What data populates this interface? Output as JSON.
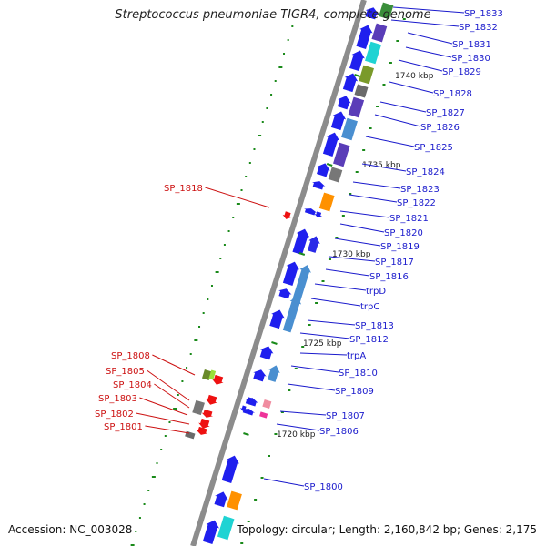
{
  "title": "Streptococcus pneumoniae TIGR4, complete genome",
  "footer": {
    "accession": "Accession: NC_003028",
    "topology": "Topology: circular; Length: 2,160,842 bp; Genes: 2,175"
  },
  "colors": {
    "backbone": "#8c8c8c",
    "forward_gene": "#1f1fee",
    "reverse_gene": "#ee1111",
    "gene_label_forward": "#1a1acc",
    "gene_label_reverse": "#cc1111",
    "gc_skew_dots": "#1a8a1a"
  },
  "scale_ticks": [
    {
      "label": "1740 kbp"
    },
    {
      "label": "1735 kbp"
    },
    {
      "label": "1730 kbp"
    },
    {
      "label": "1725 kbp"
    },
    {
      "label": "1720 kbp"
    }
  ],
  "forward_genes": [
    {
      "label": "SP_1833"
    },
    {
      "label": "SP_1832"
    },
    {
      "label": "SP_1831"
    },
    {
      "label": "SP_1830"
    },
    {
      "label": "SP_1829"
    },
    {
      "label": "SP_1828"
    },
    {
      "label": "SP_1827"
    },
    {
      "label": "SP_1826"
    },
    {
      "label": "SP_1825"
    },
    {
      "label": "SP_1824"
    },
    {
      "label": "SP_1823"
    },
    {
      "label": "SP_1822"
    },
    {
      "label": "SP_1821"
    },
    {
      "label": "SP_1820"
    },
    {
      "label": "SP_1819"
    },
    {
      "label": "SP_1817"
    },
    {
      "label": "SP_1816"
    },
    {
      "label": "trpD"
    },
    {
      "label": "trpC"
    },
    {
      "label": "SP_1813"
    },
    {
      "label": "SP_1812"
    },
    {
      "label": "trpA"
    },
    {
      "label": "SP_1810"
    },
    {
      "label": "SP_1809"
    },
    {
      "label": "SP_1807"
    },
    {
      "label": "SP_1806"
    },
    {
      "label": "SP_1800"
    }
  ],
  "reverse_genes": [
    {
      "label": "SP_1818"
    },
    {
      "label": "SP_1808"
    },
    {
      "label": "SP_1805"
    },
    {
      "label": "SP_1804"
    },
    {
      "label": "SP_1803"
    },
    {
      "label": "SP_1802"
    },
    {
      "label": "SP_1801"
    }
  ]
}
